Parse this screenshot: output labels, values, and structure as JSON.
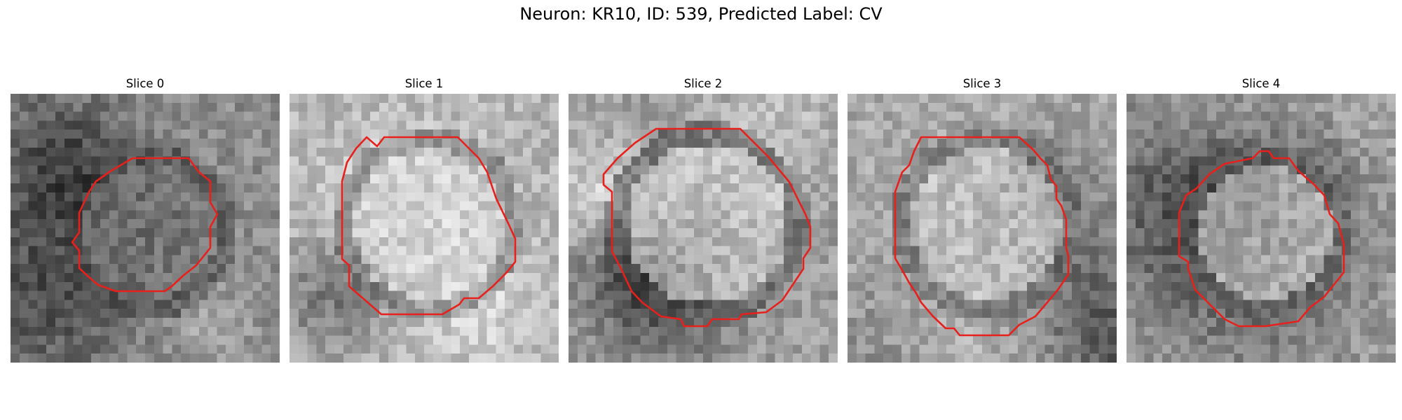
{
  "figure": {
    "title": "Neuron: KR10, ID: 539, Predicted Label: CV"
  },
  "panels": [
    {
      "title": "Slice 0"
    },
    {
      "title": "Slice 1"
    },
    {
      "title": "Slice 2"
    },
    {
      "title": "Slice 3"
    },
    {
      "title": "Slice 4"
    }
  ],
  "colors": {
    "contour": "#e8201c",
    "background": "#ffffff",
    "colormap": "grayscale"
  }
}
